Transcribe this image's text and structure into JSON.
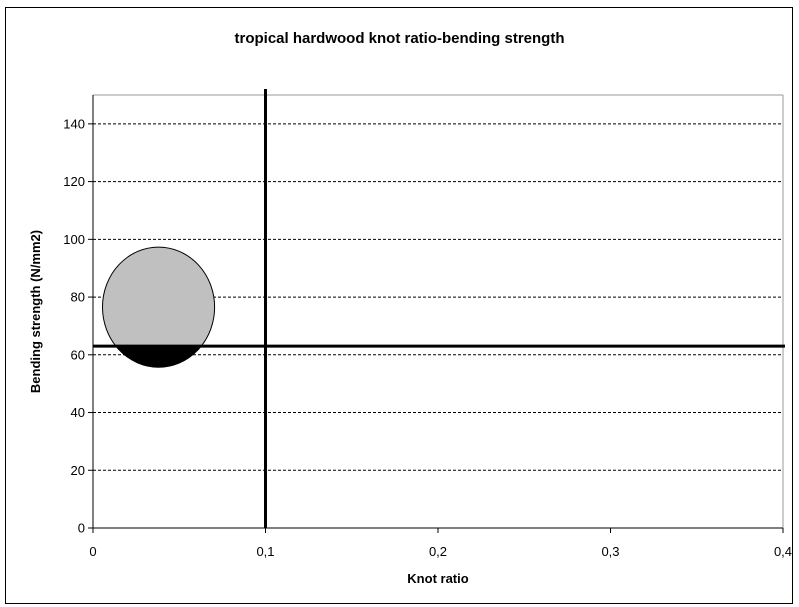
{
  "chart_data": {
    "type": "scatter",
    "title": "tropical hardwood knot ratio-bending strength",
    "xlabel": "Knot ratio",
    "ylabel": "Bending strength (N/mm2)",
    "xlim": [
      0,
      0.4
    ],
    "ylim": [
      0,
      150
    ],
    "x_ticks": [
      0,
      0.1,
      0.2,
      0.3,
      0.4
    ],
    "x_tick_labels": [
      "0",
      "0,1",
      "0,2",
      "0,3",
      "0,4"
    ],
    "y_ticks": [
      0,
      20,
      40,
      60,
      80,
      100,
      120,
      140
    ],
    "y_tick_labels": [
      "0",
      "20",
      "40",
      "60",
      "80",
      "100",
      "120",
      "140"
    ],
    "grid": "horizontal-dashed",
    "legend": "none",
    "reference_lines": [
      {
        "orientation": "vertical",
        "value": 0.1
      },
      {
        "orientation": "horizontal",
        "value": 63
      }
    ],
    "ellipses": [
      {
        "center_x": 0.038,
        "center_y": 76.5,
        "radius_x": 0.0325,
        "radius_y": 20.8,
        "fill_above_line": "#c0c0c0",
        "fill_below_line": "#000000"
      }
    ]
  }
}
